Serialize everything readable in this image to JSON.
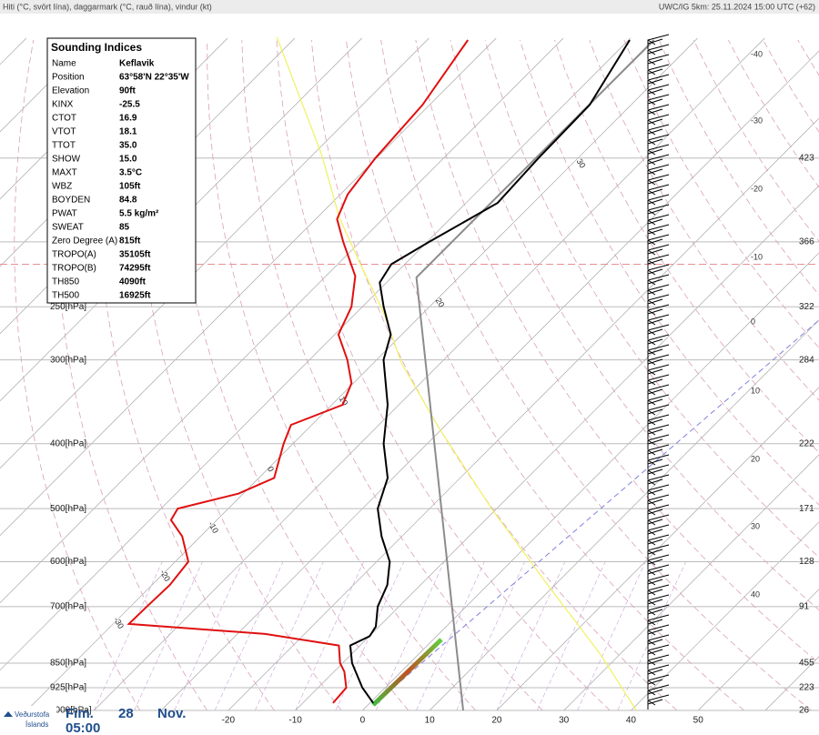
{
  "header": {
    "left": "Hiti (°C, svört lína), daggarmark (°C, rauð lína), vindur (kt)",
    "right": "UWC/IG 5km: 25.11.2024 15:00 UTC (+62)"
  },
  "indices": {
    "title": "Sounding Indices",
    "rows": [
      {
        "label": "Name",
        "value": "Keflavik"
      },
      {
        "label": "Position",
        "value": "63°58'N 22°35'W"
      },
      {
        "label": "Elevation",
        "value": "90ft"
      },
      {
        "label": "KINX",
        "value": "-25.5"
      },
      {
        "label": "CTOT",
        "value": "16.9"
      },
      {
        "label": "VTOT",
        "value": "18.1"
      },
      {
        "label": "TTOT",
        "value": "35.0"
      },
      {
        "label": "SHOW",
        "value": "15.0"
      },
      {
        "label": "MAXT",
        "value": "3.5°C"
      },
      {
        "label": "WBZ",
        "value": "105ft",
        "color": "#e00000"
      },
      {
        "label": "BOYDEN",
        "value": "84.8"
      },
      {
        "label": "PWAT",
        "value": "5.5 kg/m²"
      },
      {
        "label": "SWEAT",
        "value": "85"
      },
      {
        "label": "Zero Degree (A)",
        "value": "815ft"
      },
      {
        "label": "TROPO(A)",
        "value": "35105ft"
      },
      {
        "label": "TROPO(B)",
        "value": "74295ft"
      },
      {
        "label": "TH850",
        "value": "4090ft"
      },
      {
        "label": "TH500",
        "value": "16925ft"
      }
    ]
  },
  "footer": {
    "logo": [
      "Veðurstofa",
      "Íslands"
    ],
    "day": "Fim.",
    "date": "28",
    "month": "Nov.",
    "time": "05:00"
  },
  "chart_data": {
    "type": "skewt",
    "log": true,
    "ylim": [
      1000,
      100
    ],
    "xlim": [
      -54,
      68
    ],
    "yticks": [
      {
        "value": 250,
        "label": "250[hPa]"
      },
      {
        "value": 300,
        "label": "300[hPa]"
      },
      {
        "value": 400,
        "label": "400[hPa]"
      },
      {
        "value": 500,
        "label": "500[hPa]"
      },
      {
        "value": 600,
        "label": "600[hPa]"
      },
      {
        "value": 700,
        "label": "700[hPa]"
      },
      {
        "value": 850,
        "label": "850[hPa]"
      },
      {
        "value": 925,
        "label": "925[hPa]"
      },
      {
        "value": 1000,
        "label": "1000[hPa]"
      }
    ],
    "grid_isobars": [
      150,
      200
    ],
    "right_labels": [
      {
        "value": 150,
        "label": "423"
      },
      {
        "value": 200,
        "label": "366"
      },
      {
        "value": 250,
        "label": "322"
      },
      {
        "value": 300,
        "label": "284"
      },
      {
        "value": 400,
        "label": "222"
      },
      {
        "value": 500,
        "label": "171"
      },
      {
        "value": 600,
        "label": "128"
      },
      {
        "value": 700,
        "label": "91"
      },
      {
        "value": 850,
        "label": "455"
      },
      {
        "value": 925,
        "label": "223"
      },
      {
        "value": 1000,
        "label": "26"
      }
    ],
    "xticks": [
      -20,
      -10,
      0,
      10,
      20,
      30,
      40,
      50
    ],
    "right_temp_labels": [
      -40,
      -30,
      -20,
      -10,
      0,
      10,
      20,
      30,
      40
    ],
    "curve_labels": [
      30,
      20,
      10,
      0,
      -10,
      -20,
      -30
    ],
    "tropopause": 216,
    "series": [
      {
        "color": "#000000",
        "pressure": [
          975,
          925,
          850,
          800,
          775,
          750,
          700,
          650,
          600,
          550,
          500,
          450,
          400,
          350,
          300,
          275,
          250,
          230,
          216,
          200,
          175,
          150,
          125,
          100
        ],
        "values": [
          0.5,
          -3.4,
          -8.6,
          -11.5,
          -10,
          -10.5,
          -13.2,
          -15,
          -18.1,
          -23.1,
          -27.8,
          -30.9,
          -36.6,
          -41.8,
          -49.1,
          -51.8,
          -57,
          -61.2,
          -62.2,
          -59.9,
          -55.5,
          -56.1,
          -56.4,
          -60.1
        ]
      },
      {
        "color": "#e01010",
        "pressure": [
          975,
          925,
          875,
          850,
          800,
          769,
          743,
          700,
          650,
          600,
          550,
          520,
          500,
          475,
          450,
          425,
          400,
          375,
          350,
          325,
          300,
          275,
          250,
          225,
          200,
          185,
          170,
          150,
          125,
          100
        ],
        "values": [
          -5.5,
          -5.8,
          -8.5,
          -10.4,
          -13.2,
          -25.9,
          -47.7,
          -47.6,
          -47.4,
          -48.1,
          -52.8,
          -56.9,
          -57.6,
          -50.8,
          -47.8,
          -49.6,
          -51.5,
          -53.2,
          -48.5,
          -50.4,
          -54.5,
          -59.6,
          -61.8,
          -65.8,
          -72.7,
          -77,
          -79.1,
          -80.4,
          -81.3,
          -84.2
        ]
      },
      {
        "color": "#8c8c8c",
        "pressure": [
          1000,
          226,
          100
        ],
        "values": [
          15,
          -56.5,
          -56.5
        ]
      },
      {
        "color": "#f2f060",
        "pressure": [
          1000,
          826,
          644,
          501,
          378,
          304,
          256,
          216,
          184,
          148,
          99
        ],
        "values": [
          40.8,
          27.2,
          8.2,
          -10.7,
          -30.9,
          -45.8,
          -55.9,
          -66.8,
          -76.9,
          -89,
          -113.1
        ]
      }
    ]
  }
}
